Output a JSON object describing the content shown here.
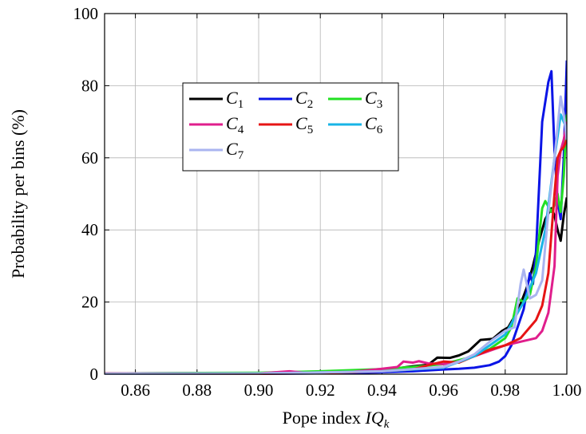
{
  "chart_data": {
    "type": "line",
    "xlabel": "Pope index IQ",
    "xlabel_subscript": "k",
    "ylabel": "Probability per bins (%)",
    "xlim": [
      0.85,
      1.0
    ],
    "ylim": [
      0,
      100
    ],
    "x_ticks": [
      0.86,
      0.88,
      0.9,
      0.92,
      0.94,
      0.96,
      0.98,
      1.0
    ],
    "x_tick_labels": [
      "0.86",
      "0.88",
      "0.90",
      "0.92",
      "0.94",
      "0.96",
      "0.98",
      "1.00"
    ],
    "y_ticks": [
      0,
      20,
      40,
      60,
      80,
      100
    ],
    "y_tick_labels": [
      "0",
      "20",
      "40",
      "60",
      "80",
      "100"
    ],
    "grid": true,
    "legend_placement": "upper-left-center",
    "legend_columns": 3,
    "series": [
      {
        "name": "C",
        "sub": "1",
        "color": "#000000",
        "points": [
          [
            0.85,
            0.2
          ],
          [
            0.9,
            0.3
          ],
          [
            0.92,
            0.6
          ],
          [
            0.94,
            1.2
          ],
          [
            0.945,
            1.6
          ],
          [
            0.95,
            2.2
          ],
          [
            0.955,
            2.6
          ],
          [
            0.958,
            4.6
          ],
          [
            0.962,
            4.5
          ],
          [
            0.965,
            5.2
          ],
          [
            0.968,
            6.3
          ],
          [
            0.972,
            9.5
          ],
          [
            0.976,
            9.8
          ],
          [
            0.979,
            12.0
          ],
          [
            0.981,
            13.0
          ],
          [
            0.983,
            16.0
          ],
          [
            0.985,
            19.5
          ],
          [
            0.987,
            24.0
          ],
          [
            0.989,
            30.0
          ],
          [
            0.991,
            37.0
          ],
          [
            0.993,
            43.0
          ],
          [
            0.995,
            46.0
          ],
          [
            0.996,
            44.0
          ],
          [
            0.997,
            40.0
          ],
          [
            0.998,
            37.0
          ],
          [
            0.999,
            44.0
          ],
          [
            1.0,
            49.0
          ]
        ]
      },
      {
        "name": "C",
        "sub": "2",
        "color": "#0a14e6",
        "points": [
          [
            0.85,
            0.1
          ],
          [
            0.9,
            0.1
          ],
          [
            0.93,
            0.3
          ],
          [
            0.95,
            0.8
          ],
          [
            0.96,
            1.3
          ],
          [
            0.965,
            1.5
          ],
          [
            0.97,
            1.8
          ],
          [
            0.975,
            2.5
          ],
          [
            0.978,
            3.5
          ],
          [
            0.98,
            5.0
          ],
          [
            0.982,
            8.0
          ],
          [
            0.984,
            13.0
          ],
          [
            0.986,
            18.0
          ],
          [
            0.988,
            28.0
          ],
          [
            0.989,
            25.0
          ],
          [
            0.99,
            34.0
          ],
          [
            0.992,
            70.0
          ],
          [
            0.994,
            81.0
          ],
          [
            0.995,
            84.0
          ],
          [
            0.996,
            62.0
          ],
          [
            0.997,
            48.0
          ],
          [
            0.998,
            43.0
          ],
          [
            0.999,
            60.0
          ],
          [
            1.0,
            87.0
          ]
        ]
      },
      {
        "name": "C",
        "sub": "3",
        "color": "#22e022",
        "points": [
          [
            0.85,
            0.2
          ],
          [
            0.9,
            0.4
          ],
          [
            0.92,
            0.8
          ],
          [
            0.94,
            1.4
          ],
          [
            0.95,
            2.0
          ],
          [
            0.96,
            2.8
          ],
          [
            0.97,
            5.0
          ],
          [
            0.975,
            7.0
          ],
          [
            0.98,
            10.0
          ],
          [
            0.982,
            13.0
          ],
          [
            0.984,
            21.0
          ],
          [
            0.986,
            20.0
          ],
          [
            0.988,
            22.0
          ],
          [
            0.99,
            30.0
          ],
          [
            0.992,
            46.0
          ],
          [
            0.993,
            48.0
          ],
          [
            0.995,
            45.0
          ],
          [
            0.996,
            47.0
          ],
          [
            0.997,
            50.0
          ],
          [
            0.998,
            45.0
          ],
          [
            0.999,
            55.0
          ],
          [
            1.0,
            72.0
          ]
        ]
      },
      {
        "name": "C",
        "sub": "4",
        "color": "#e01e8c",
        "points": [
          [
            0.85,
            0.2
          ],
          [
            0.9,
            0.2
          ],
          [
            0.91,
            0.8
          ],
          [
            0.915,
            0.4
          ],
          [
            0.93,
            0.6
          ],
          [
            0.94,
            1.5
          ],
          [
            0.945,
            2.0
          ],
          [
            0.947,
            3.5
          ],
          [
            0.95,
            3.2
          ],
          [
            0.952,
            3.6
          ],
          [
            0.955,
            3.0
          ],
          [
            0.96,
            2.8
          ],
          [
            0.965,
            3.5
          ],
          [
            0.97,
            5.0
          ],
          [
            0.975,
            6.5
          ],
          [
            0.98,
            8.0
          ],
          [
            0.985,
            9.0
          ],
          [
            0.99,
            10.0
          ],
          [
            0.992,
            12.0
          ],
          [
            0.994,
            17.0
          ],
          [
            0.996,
            30.0
          ],
          [
            0.997,
            55.0
          ],
          [
            0.998,
            62.0
          ],
          [
            0.999,
            65.0
          ],
          [
            1.0,
            70.0
          ]
        ]
      },
      {
        "name": "C",
        "sub": "5",
        "color": "#e61414",
        "points": [
          [
            0.85,
            0.1
          ],
          [
            0.9,
            0.1
          ],
          [
            0.92,
            0.3
          ],
          [
            0.94,
            0.8
          ],
          [
            0.95,
            1.3
          ],
          [
            0.955,
            2.5
          ],
          [
            0.96,
            3.5
          ],
          [
            0.965,
            3.2
          ],
          [
            0.97,
            5.0
          ],
          [
            0.975,
            6.8
          ],
          [
            0.98,
            8.0
          ],
          [
            0.985,
            10.0
          ],
          [
            0.988,
            13.0
          ],
          [
            0.99,
            15.0
          ],
          [
            0.992,
            19.0
          ],
          [
            0.994,
            28.0
          ],
          [
            0.996,
            50.0
          ],
          [
            0.997,
            60.0
          ],
          [
            0.998,
            62.0
          ],
          [
            0.999,
            63.0
          ],
          [
            1.0,
            65.0
          ]
        ]
      },
      {
        "name": "C",
        "sub": "6",
        "color": "#18b4e6",
        "points": [
          [
            0.85,
            0.1
          ],
          [
            0.9,
            0.2
          ],
          [
            0.94,
            0.8
          ],
          [
            0.96,
            1.8
          ],
          [
            0.97,
            5.0
          ],
          [
            0.975,
            8.0
          ],
          [
            0.98,
            11.0
          ],
          [
            0.984,
            17.0
          ],
          [
            0.986,
            20.0
          ],
          [
            0.99,
            28.0
          ],
          [
            0.993,
            40.0
          ],
          [
            0.996,
            60.0
          ],
          [
            0.998,
            72.0
          ],
          [
            0.999,
            70.0
          ],
          [
            1.0,
            68.0
          ]
        ]
      },
      {
        "name": "C",
        "sub": "7",
        "color": "#aab4f0",
        "points": [
          [
            0.85,
            0.1
          ],
          [
            0.9,
            0.2
          ],
          [
            0.94,
            0.8
          ],
          [
            0.96,
            2.0
          ],
          [
            0.965,
            3.5
          ],
          [
            0.97,
            5.5
          ],
          [
            0.975,
            9.0
          ],
          [
            0.98,
            12.0
          ],
          [
            0.983,
            13.0
          ],
          [
            0.985,
            25.0
          ],
          [
            0.986,
            29.0
          ],
          [
            0.988,
            21.0
          ],
          [
            0.99,
            22.0
          ],
          [
            0.992,
            26.0
          ],
          [
            0.994,
            45.0
          ],
          [
            0.996,
            60.0
          ],
          [
            0.998,
            77.0
          ],
          [
            0.999,
            72.0
          ],
          [
            1.0,
            65.0
          ]
        ]
      }
    ]
  }
}
